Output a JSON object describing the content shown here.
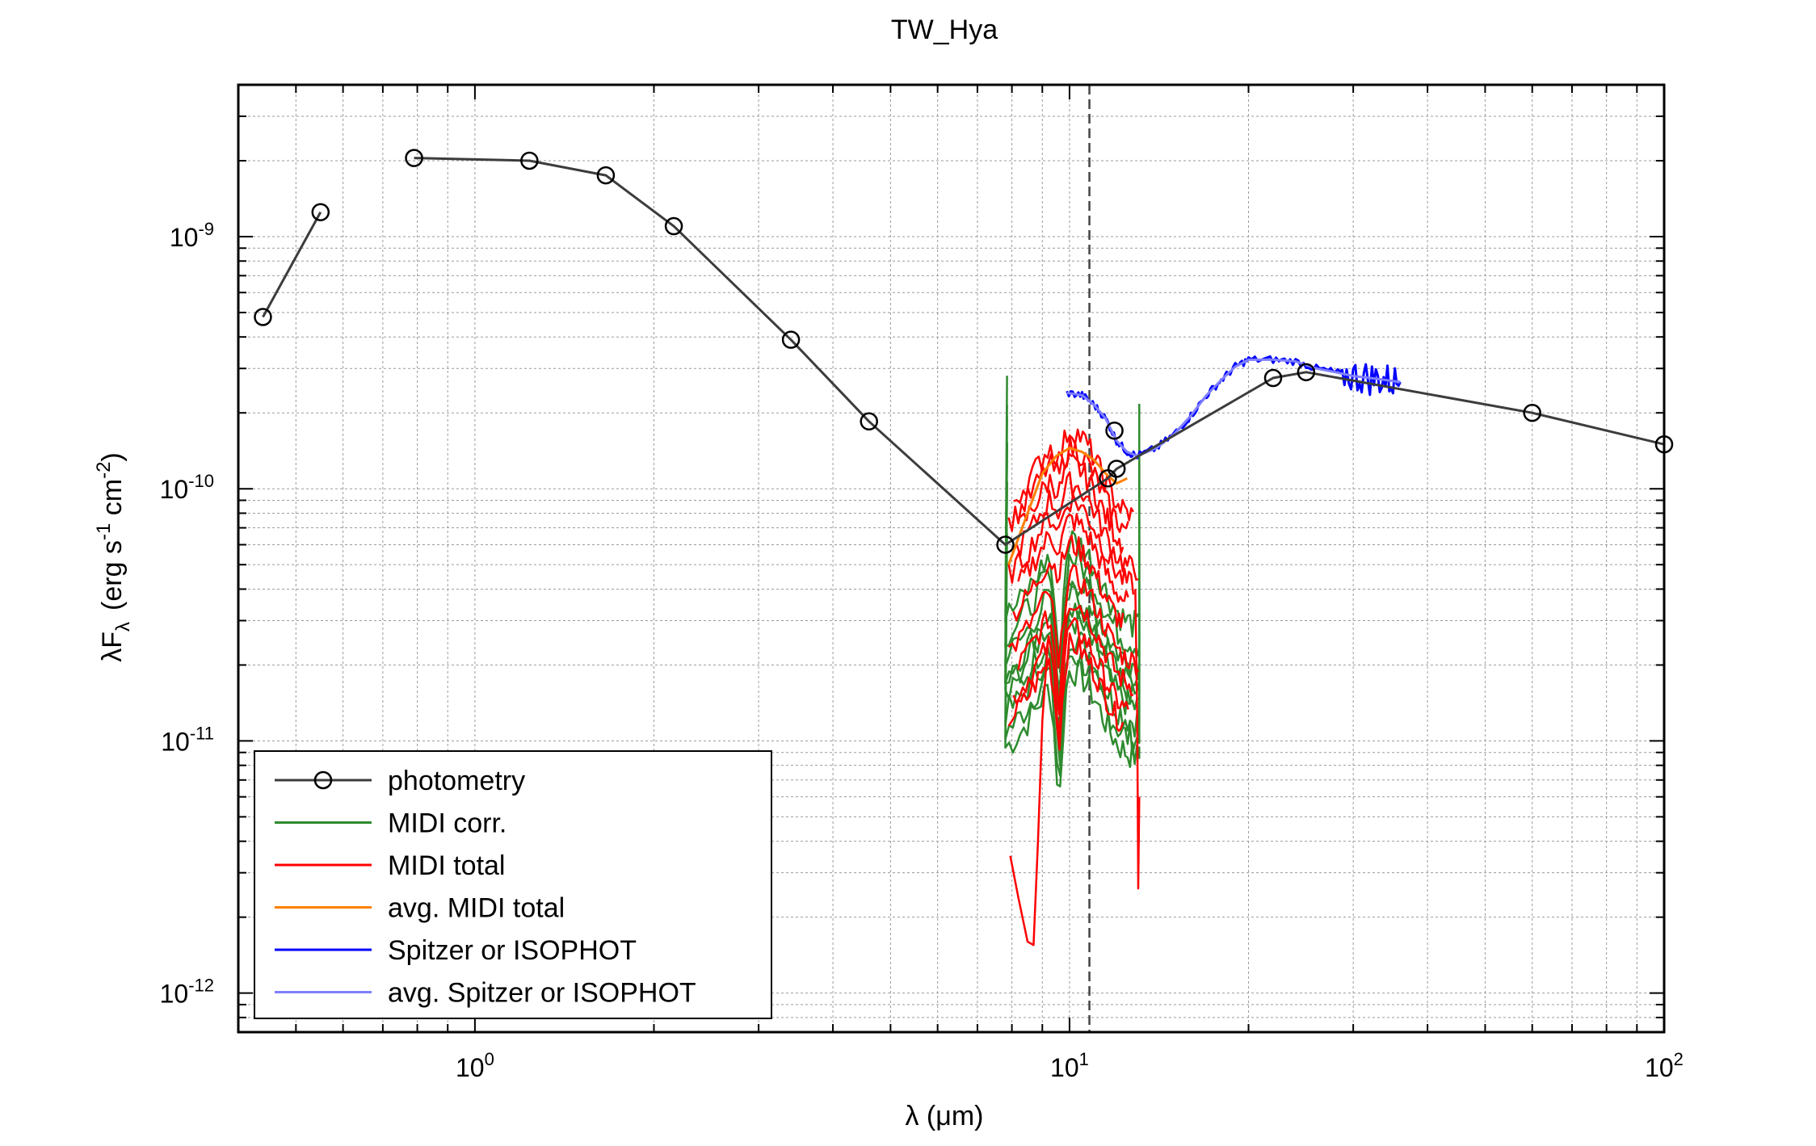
{
  "chart_data": {
    "type": "line",
    "title": "TW_Hya",
    "xlabel": "λ (μm)",
    "ylabel": {
      "main": "λF",
      "sub": "λ",
      "unit": "(erg s",
      "e1": "-1",
      "unit2": " cm",
      "e2": "-2",
      "close": ")"
    },
    "xscale": "log",
    "yscale": "log",
    "xlim": [
      0.4,
      100
    ],
    "ylim": [
      7e-13,
      4e-09
    ],
    "grid": true,
    "reference_line_x": 10.8,
    "x_ticks": [
      {
        "base": "10",
        "exp": "0",
        "value": 1
      },
      {
        "base": "10",
        "exp": "1",
        "value": 10
      },
      {
        "base": "10",
        "exp": "2",
        "value": 100
      }
    ],
    "y_ticks": [
      {
        "base": "10",
        "exp": "-9",
        "value": 1e-09
      },
      {
        "base": "10",
        "exp": "-10",
        "value": 1e-10
      },
      {
        "base": "10",
        "exp": "-11",
        "value": 1e-11
      },
      {
        "base": "10",
        "exp": "-12",
        "value": 1e-12
      }
    ],
    "legend_position": "bottom-left",
    "legend": [
      {
        "label": "photometry",
        "color": "#3c3c3c",
        "marker": "circle"
      },
      {
        "label": "MIDI corr.",
        "color": "#2e8b2e"
      },
      {
        "label": "MIDI total",
        "color": "#ff0000"
      },
      {
        "label": "avg. MIDI total",
        "color": "#ff8000"
      },
      {
        "label": "Spitzer or ISOPHOT",
        "color": "#0000ff"
      },
      {
        "label": "avg. Spitzer or ISOPHOT",
        "color": "#7f7fff"
      }
    ],
    "photometry": {
      "segments": [
        [
          [
            0.44,
            4.8e-10
          ],
          [
            0.55,
            1.25e-09
          ]
        ],
        [
          [
            0.79,
            2.05e-09
          ],
          [
            1.235,
            2e-09
          ],
          [
            1.66,
            1.75e-09
          ],
          [
            2.16,
            1.1e-09
          ],
          [
            3.4,
            3.9e-10
          ],
          [
            4.6,
            1.85e-10
          ],
          [
            7.8,
            6e-11
          ],
          [
            11.6,
            1.1e-10
          ],
          [
            12.0,
            1.2e-10
          ],
          [
            22.0,
            2.75e-10
          ],
          [
            25.0,
            2.9e-10
          ],
          [
            60.0,
            2e-10
          ],
          [
            100.0,
            1.5e-10
          ]
        ]
      ],
      "extra_points": [
        [
          11.9,
          1.7e-10
        ]
      ]
    },
    "midi_range": [
      7.8,
      13.1
    ],
    "midi_corr_levels": [
      1.9e-11,
      2.2e-11,
      2.6e-11,
      3e-11,
      3.4e-11,
      3.8e-11,
      4.4e-11,
      5.3e-11,
      6.3e-11
    ],
    "midi_total_levels": [
      2.4e-11,
      2.8e-11,
      3.6e-11,
      4.5e-11,
      6e-11,
      7.5e-11,
      9e-11,
      1.05e-10,
      1.25e-10,
      1.45e-10,
      1.7e-10
    ],
    "midi_avg": [
      [
        7.9,
        5e-11
      ],
      [
        8.5,
        8e-11
      ],
      [
        9.0,
        1.15e-10
      ],
      [
        9.5,
        1.35e-10
      ],
      [
        10.0,
        1.45e-10
      ],
      [
        10.5,
        1.4e-10
      ],
      [
        11.0,
        1.3e-10
      ],
      [
        11.5,
        1.15e-10
      ],
      [
        12.0,
        1.05e-10
      ],
      [
        12.5,
        1.1e-10
      ]
    ],
    "spitzer": [
      [
        9.9,
        2.4e-10
      ],
      [
        10.5,
        2.35e-10
      ],
      [
        11.0,
        2.15e-10
      ],
      [
        11.5,
        1.9e-10
      ],
      [
        12.0,
        1.55e-10
      ],
      [
        12.5,
        1.4e-10
      ],
      [
        13.0,
        1.35e-10
      ],
      [
        14.0,
        1.45e-10
      ],
      [
        15.0,
        1.65e-10
      ],
      [
        16.0,
        1.95e-10
      ],
      [
        17.0,
        2.35e-10
      ],
      [
        18.0,
        2.7e-10
      ],
      [
        19.0,
        3.05e-10
      ],
      [
        20.0,
        3.25e-10
      ],
      [
        22.0,
        3.25e-10
      ],
      [
        24.0,
        3.2e-10
      ],
      [
        26.0,
        3e-10
      ],
      [
        28.0,
        2.9e-10
      ],
      [
        30.0,
        2.8e-10
      ],
      [
        32.0,
        2.75e-10
      ],
      [
        34.0,
        2.7e-10
      ],
      [
        36.0,
        2.65e-10
      ]
    ],
    "spitzer_noise_range": [
      29.0,
      36.5
    ]
  }
}
